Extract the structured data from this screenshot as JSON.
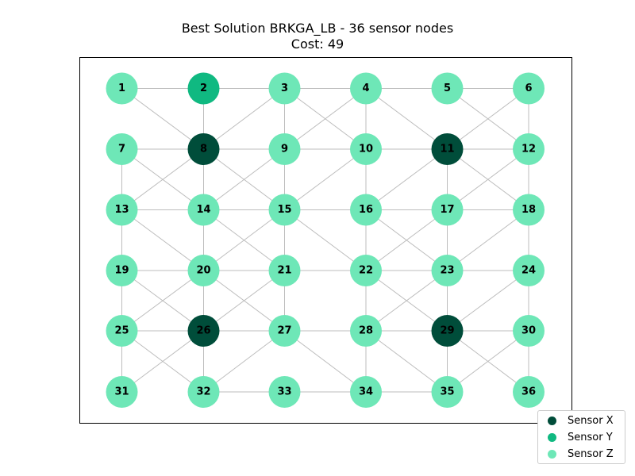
{
  "title": "Best Solution BRKGA_LB - 36 sensor nodes",
  "subtitle": "Cost: 49",
  "colors": {
    "sensor_x": "#004d3a",
    "sensor_y": "#10b981",
    "sensor_z": "#6ee7b7",
    "edge": "#bdbdbd"
  },
  "legend": [
    {
      "label": "Sensor X",
      "type": "X"
    },
    {
      "label": "Sensor Y",
      "type": "Y"
    },
    {
      "label": "Sensor Z",
      "type": "Z"
    }
  ],
  "grid": {
    "columns": 6,
    "rows": 6
  },
  "nodes": [
    {
      "id": "1",
      "type": "Z"
    },
    {
      "id": "2",
      "type": "Y"
    },
    {
      "id": "3",
      "type": "Z"
    },
    {
      "id": "4",
      "type": "Z"
    },
    {
      "id": "5",
      "type": "Z"
    },
    {
      "id": "6",
      "type": "Z"
    },
    {
      "id": "7",
      "type": "Z"
    },
    {
      "id": "8",
      "type": "X"
    },
    {
      "id": "9",
      "type": "Z"
    },
    {
      "id": "10",
      "type": "Z"
    },
    {
      "id": "11",
      "type": "X"
    },
    {
      "id": "12",
      "type": "Z"
    },
    {
      "id": "13",
      "type": "Z"
    },
    {
      "id": "14",
      "type": "Z"
    },
    {
      "id": "15",
      "type": "Z"
    },
    {
      "id": "16",
      "type": "Z"
    },
    {
      "id": "17",
      "type": "Z"
    },
    {
      "id": "18",
      "type": "Z"
    },
    {
      "id": "19",
      "type": "Z"
    },
    {
      "id": "20",
      "type": "Z"
    },
    {
      "id": "21",
      "type": "Z"
    },
    {
      "id": "22",
      "type": "Z"
    },
    {
      "id": "23",
      "type": "Z"
    },
    {
      "id": "24",
      "type": "Z"
    },
    {
      "id": "25",
      "type": "Z"
    },
    {
      "id": "26",
      "type": "X"
    },
    {
      "id": "27",
      "type": "Z"
    },
    {
      "id": "28",
      "type": "Z"
    },
    {
      "id": "29",
      "type": "X"
    },
    {
      "id": "30",
      "type": "Z"
    },
    {
      "id": "31",
      "type": "Z"
    },
    {
      "id": "32",
      "type": "Z"
    },
    {
      "id": "33",
      "type": "Z"
    },
    {
      "id": "34",
      "type": "Z"
    },
    {
      "id": "35",
      "type": "Z"
    },
    {
      "id": "36",
      "type": "Z"
    }
  ],
  "edges": [
    [
      "1",
      "2"
    ],
    [
      "2",
      "3"
    ],
    [
      "3",
      "4"
    ],
    [
      "4",
      "5"
    ],
    [
      "5",
      "6"
    ],
    [
      "7",
      "8"
    ],
    [
      "8",
      "9"
    ],
    [
      "9",
      "10"
    ],
    [
      "10",
      "11"
    ],
    [
      "11",
      "12"
    ],
    [
      "13",
      "14"
    ],
    [
      "14",
      "15"
    ],
    [
      "15",
      "16"
    ],
    [
      "16",
      "17"
    ],
    [
      "17",
      "18"
    ],
    [
      "19",
      "20"
    ],
    [
      "20",
      "21"
    ],
    [
      "21",
      "22"
    ],
    [
      "22",
      "23"
    ],
    [
      "23",
      "24"
    ],
    [
      "25",
      "26"
    ],
    [
      "26",
      "27"
    ],
    [
      "27",
      "28"
    ],
    [
      "28",
      "29"
    ],
    [
      "29",
      "30"
    ],
    [
      "32",
      "33"
    ],
    [
      "33",
      "34"
    ],
    [
      "34",
      "35"
    ],
    [
      "2",
      "8"
    ],
    [
      "3",
      "9"
    ],
    [
      "4",
      "10"
    ],
    [
      "6",
      "12"
    ],
    [
      "7",
      "13"
    ],
    [
      "8",
      "14"
    ],
    [
      "9",
      "15"
    ],
    [
      "10",
      "16"
    ],
    [
      "11",
      "17"
    ],
    [
      "12",
      "18"
    ],
    [
      "13",
      "19"
    ],
    [
      "14",
      "20"
    ],
    [
      "15",
      "21"
    ],
    [
      "16",
      "22"
    ],
    [
      "17",
      "23"
    ],
    [
      "18",
      "24"
    ],
    [
      "19",
      "25"
    ],
    [
      "20",
      "26"
    ],
    [
      "21",
      "27"
    ],
    [
      "22",
      "28"
    ],
    [
      "23",
      "29"
    ],
    [
      "24",
      "30"
    ],
    [
      "25",
      "31"
    ],
    [
      "26",
      "32"
    ],
    [
      "28",
      "34"
    ],
    [
      "29",
      "35"
    ],
    [
      "30",
      "36"
    ],
    [
      "1",
      "8"
    ],
    [
      "3",
      "10"
    ],
    [
      "4",
      "11"
    ],
    [
      "5",
      "12"
    ],
    [
      "7",
      "14"
    ],
    [
      "8",
      "15"
    ],
    [
      "11",
      "18"
    ],
    [
      "13",
      "20"
    ],
    [
      "14",
      "21"
    ],
    [
      "15",
      "22"
    ],
    [
      "16",
      "23"
    ],
    [
      "19",
      "26"
    ],
    [
      "20",
      "27"
    ],
    [
      "22",
      "29"
    ],
    [
      "25",
      "32"
    ],
    [
      "27",
      "34"
    ],
    [
      "28",
      "35"
    ],
    [
      "29",
      "36"
    ],
    [
      "3",
      "8"
    ],
    [
      "4",
      "9"
    ],
    [
      "6",
      "11"
    ],
    [
      "8",
      "13"
    ],
    [
      "10",
      "15"
    ],
    [
      "11",
      "16"
    ],
    [
      "12",
      "17"
    ],
    [
      "9",
      "14"
    ],
    [
      "15",
      "20"
    ],
    [
      "17",
      "22"
    ],
    [
      "18",
      "23"
    ],
    [
      "20",
      "25"
    ],
    [
      "21",
      "26"
    ],
    [
      "23",
      "28"
    ],
    [
      "24",
      "29"
    ],
    [
      "26",
      "31"
    ],
    [
      "27",
      "32"
    ],
    [
      "30",
      "35"
    ]
  ]
}
